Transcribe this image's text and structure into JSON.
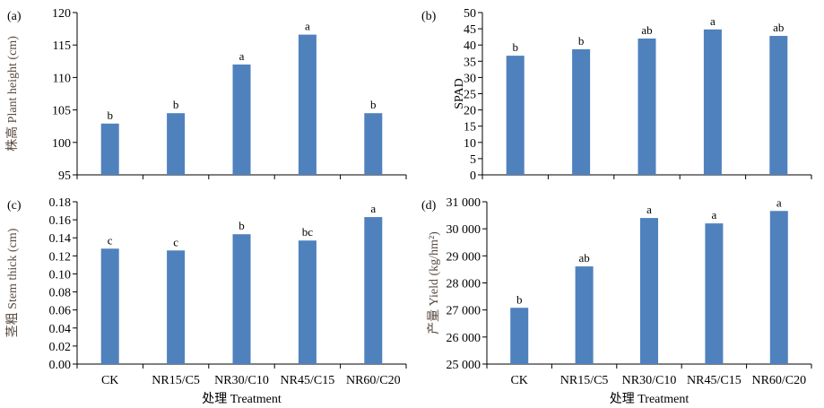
{
  "chart_data": [
    {
      "type": "bar",
      "panel": "(a)",
      "ylabel": "株高 Plant height (cm)",
      "ylim": [
        95,
        120
      ],
      "ticks": [
        "95",
        "100",
        "105",
        "110",
        "115",
        "120"
      ],
      "tickvals": [
        95,
        100,
        105,
        110,
        115,
        120
      ],
      "categories": [
        "CK",
        "NR15/C5",
        "NR30/C10",
        "NR45/C15",
        "NR60/C20"
      ],
      "values": [
        102.9,
        104.5,
        112.0,
        116.6,
        104.5
      ],
      "letters": [
        "b",
        "b",
        "a",
        "a",
        "b"
      ],
      "xlabel": "",
      "show_categories": false
    },
    {
      "type": "bar",
      "panel": "(b)",
      "ylabel": "SPAD",
      "ylim": [
        0,
        50
      ],
      "ticks": [
        "0",
        "5",
        "10",
        "15",
        "20",
        "25",
        "30",
        "35",
        "40",
        "45",
        "50"
      ],
      "tickvals": [
        0,
        5,
        10,
        15,
        20,
        25,
        30,
        35,
        40,
        45,
        50
      ],
      "categories": [
        "CK",
        "NR15/C5",
        "NR30/C10",
        "NR45/C15",
        "NR60/C20"
      ],
      "values": [
        36.7,
        38.7,
        42.0,
        44.8,
        42.8
      ],
      "letters": [
        "b",
        "b",
        "ab",
        "a",
        "ab"
      ],
      "xlabel": "",
      "show_categories": false
    },
    {
      "type": "bar",
      "panel": "(c)",
      "ylabel": "茎粗 Stem thick (cm)",
      "ylim": [
        0,
        0.18
      ],
      "ticks": [
        "0.00",
        "0.02",
        "0.04",
        "0.06",
        "0.08",
        "0.10",
        "0.12",
        "0.14",
        "0.16",
        "0.18"
      ],
      "tickvals": [
        0,
        0.02,
        0.04,
        0.06,
        0.08,
        0.1,
        0.12,
        0.14,
        0.16,
        0.18
      ],
      "categories": [
        "CK",
        "NR15/C5",
        "NR30/C10",
        "NR45/C15",
        "NR60/C20"
      ],
      "values": [
        0.128,
        0.126,
        0.144,
        0.137,
        0.163
      ],
      "letters": [
        "c",
        "c",
        "b",
        "bc",
        "a"
      ],
      "xlabel": "处理 Treatment",
      "show_categories": true
    },
    {
      "type": "bar",
      "panel": "(d)",
      "ylabel": "产量 Yield (kg/hm²)",
      "ylim": [
        25000,
        31000
      ],
      "ticks": [
        "25 000",
        "26 000",
        "27 000",
        "28 000",
        "29 000",
        "30 000",
        "31 000"
      ],
      "tickvals": [
        25000,
        26000,
        27000,
        28000,
        29000,
        30000,
        31000
      ],
      "categories": [
        "CK",
        "NR15/C5",
        "NR30/C10",
        "NR45/C15",
        "NR60/C20"
      ],
      "values": [
        27080,
        28610,
        30400,
        30200,
        30660
      ],
      "letters": [
        "b",
        "ab",
        "a",
        "a",
        "a"
      ],
      "xlabel": "处理 Treatment",
      "show_categories": true
    }
  ],
  "colors": {
    "bar": "#4f81bd",
    "axis": "#000000",
    "ylabel": "#5a4a3f"
  }
}
